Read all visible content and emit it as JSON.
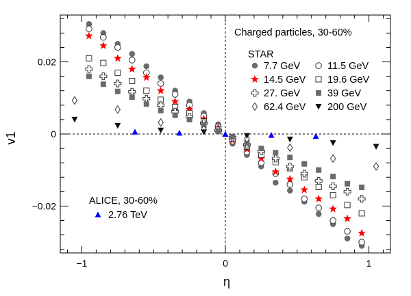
{
  "chart_data": {
    "type": "scatter",
    "xlabel": "η",
    "ylabel": "v1",
    "xlim": [
      -1.15,
      1.15
    ],
    "ylim": [
      -0.033,
      0.033
    ],
    "xticks": [
      -1,
      0,
      1
    ],
    "xtick_labels": [
      "−1",
      "0",
      "1"
    ],
    "yticks": [
      -0.02,
      0,
      0.02
    ],
    "ytick_labels": [
      "−0.02",
      "0",
      "0.02"
    ],
    "zero_lines": true,
    "star_title": "Charged particles, 30-60%",
    "star_label": "STAR",
    "alice_label": "ALICE, 30-60%",
    "series": [
      {
        "name": "7.7 GeV",
        "marker": "filled-circle",
        "color": "#6b6b6b",
        "x": [
          -0.95,
          -0.85,
          -0.75,
          -0.65,
          -0.55,
          -0.45,
          -0.35,
          -0.25,
          -0.15,
          -0.05,
          0.05,
          0.15,
          0.25,
          0.35,
          0.45,
          0.55,
          0.65,
          0.75,
          0.85,
          0.95
        ],
        "y": [
          0.0305,
          0.028,
          0.025,
          0.0222,
          0.0188,
          0.0157,
          0.012,
          0.009,
          0.0058,
          0.0027,
          -0.0027,
          -0.0058,
          -0.009,
          -0.0135,
          -0.0157,
          -0.0188,
          -0.0222,
          -0.025,
          -0.029,
          -0.031
        ]
      },
      {
        "name": "11.5 GeV",
        "marker": "open-circle",
        "color": "#333333",
        "x": [
          -0.95,
          -0.85,
          -0.75,
          -0.65,
          -0.55,
          -0.45,
          -0.35,
          -0.25,
          -0.15,
          -0.05,
          0.05,
          0.15,
          0.25,
          0.35,
          0.45,
          0.55,
          0.65,
          0.75,
          0.85,
          0.95
        ],
        "y": [
          0.0292,
          0.0268,
          0.024,
          0.0205,
          0.017,
          0.014,
          0.011,
          0.008,
          0.005,
          0.002,
          -0.002,
          -0.005,
          -0.008,
          -0.011,
          -0.014,
          -0.018,
          -0.0205,
          -0.024,
          -0.027,
          -0.03
        ]
      },
      {
        "name": "14.5 GeV",
        "marker": "star",
        "color": "#ff0000",
        "x": [
          -0.95,
          -0.85,
          -0.75,
          -0.65,
          -0.55,
          -0.45,
          -0.35,
          -0.25,
          -0.15,
          -0.05,
          0.05,
          0.15,
          0.25,
          0.35,
          0.45,
          0.55,
          0.65,
          0.75,
          0.85,
          0.95
        ],
        "y": [
          0.0272,
          0.0245,
          0.021,
          0.018,
          0.0157,
          0.012,
          0.009,
          0.0068,
          0.0042,
          0.0017,
          -0.0017,
          -0.0042,
          -0.0068,
          -0.0105,
          -0.0125,
          -0.0155,
          -0.018,
          -0.0208,
          -0.0235,
          -0.0275
        ]
      },
      {
        "name": "19.6 GeV",
        "marker": "open-square",
        "color": "#333333",
        "x": [
          -0.95,
          -0.85,
          -0.75,
          -0.65,
          -0.55,
          -0.45,
          -0.35,
          -0.25,
          -0.15,
          -0.05,
          0.05,
          0.15,
          0.25,
          0.35,
          0.45,
          0.55,
          0.65,
          0.75,
          0.85,
          0.95
        ],
        "y": [
          0.021,
          0.0197,
          0.017,
          0.0147,
          0.012,
          0.0095,
          0.0075,
          0.0058,
          0.0035,
          0.0013,
          -0.0013,
          -0.0035,
          -0.0058,
          -0.0078,
          -0.0095,
          -0.012,
          -0.0147,
          -0.017,
          -0.0197,
          -0.022
        ]
      },
      {
        "name": "27. GeV",
        "marker": "open-cross",
        "color": "#333333",
        "x": [
          -0.95,
          -0.85,
          -0.75,
          -0.65,
          -0.55,
          -0.45,
          -0.35,
          -0.25,
          -0.15,
          -0.05,
          0.05,
          0.15,
          0.25,
          0.35,
          0.45,
          0.55,
          0.65,
          0.75,
          0.85,
          0.95
        ],
        "y": [
          0.018,
          0.016,
          0.014,
          0.0117,
          0.0098,
          0.008,
          0.0062,
          0.0048,
          0.003,
          0.001,
          -0.001,
          -0.003,
          -0.0048,
          -0.0068,
          -0.009,
          -0.011,
          -0.013,
          -0.0145,
          -0.016,
          -0.018
        ]
      },
      {
        "name": "39 GeV",
        "marker": "filled-square",
        "color": "#6b6b6b",
        "x": [
          -0.95,
          -0.85,
          -0.75,
          -0.65,
          -0.55,
          -0.45,
          -0.35,
          -0.25,
          -0.15,
          -0.05,
          0.05,
          0.15,
          0.25,
          0.35,
          0.45,
          0.55,
          0.65,
          0.75,
          0.85,
          0.95
        ],
        "y": [
          0.016,
          0.0138,
          0.0118,
          0.0102,
          0.0083,
          0.0065,
          0.0052,
          0.004,
          0.0025,
          0.0008,
          -0.0008,
          -0.0025,
          -0.004,
          -0.0052,
          -0.0065,
          -0.0083,
          -0.01,
          -0.0118,
          -0.0138,
          -0.0148
        ]
      },
      {
        "name": "62.4 GeV",
        "marker": "open-diamond",
        "color": "#333333",
        "x": [
          -1.05,
          -0.75,
          -0.45,
          -0.15,
          0.15,
          0.45,
          0.75,
          1.05
        ],
        "y": [
          0.0093,
          0.0068,
          0.0032,
          0.0013,
          -0.0013,
          -0.0038,
          -0.0068,
          -0.009
        ]
      },
      {
        "name": "200 GeV",
        "marker": "filled-triangle-down",
        "color": "#111111",
        "x": [
          -1.05,
          -0.75,
          -0.45,
          -0.15,
          0.15,
          0.45,
          0.75,
          1.05
        ],
        "y": [
          0.004,
          0.0023,
          0.001,
          0.0005,
          -0.0005,
          -0.0015,
          -0.0025,
          -0.0035
        ]
      },
      {
        "name": "2.76 TeV",
        "marker": "filled-triangle-up",
        "color": "#0000ff",
        "x": [
          -0.63,
          -0.32,
          0.0,
          0.32,
          0.63
        ],
        "y": [
          0.0006,
          0.0003,
          0.0,
          -0.0003,
          -0.0006
        ]
      }
    ],
    "legend_layout": {
      "star_order": [
        "7.7 GeV",
        "11.5 GeV",
        "14.5 GeV",
        "19.6 GeV",
        "27. GeV",
        "39 GeV",
        "62.4 GeV",
        "200 GeV"
      ],
      "placement_star": "top-right",
      "placement_alice": "bottom-left"
    }
  }
}
